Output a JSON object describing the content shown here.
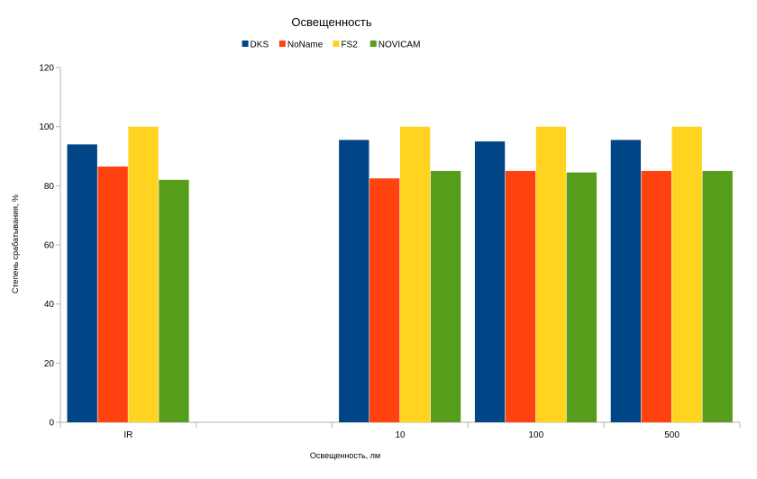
{
  "chart_data": {
    "type": "bar",
    "title": "Освещенность",
    "xlabel": "Освещенность, лм",
    "ylabel": "Степень срабатывания, %",
    "categories": [
      "IR",
      "",
      "10",
      "100",
      "500"
    ],
    "ylim": [
      0,
      120
    ],
    "yticks": [
      0,
      20,
      40,
      60,
      80,
      100,
      120
    ],
    "grid": false,
    "legend_position": "top",
    "series": [
      {
        "name": "DKS",
        "color": "#004586",
        "values": [
          94,
          null,
          95.5,
          95,
          95.5
        ]
      },
      {
        "name": "NoName",
        "color": "#ff420e",
        "values": [
          86.5,
          null,
          82.5,
          85,
          85
        ]
      },
      {
        "name": "FS2",
        "color": "#ffd320",
        "values": [
          100,
          null,
          100,
          100,
          100
        ]
      },
      {
        "name": "NOVICAM",
        "color": "#579d1c",
        "values": [
          82,
          null,
          85,
          84.5,
          85
        ]
      }
    ]
  }
}
